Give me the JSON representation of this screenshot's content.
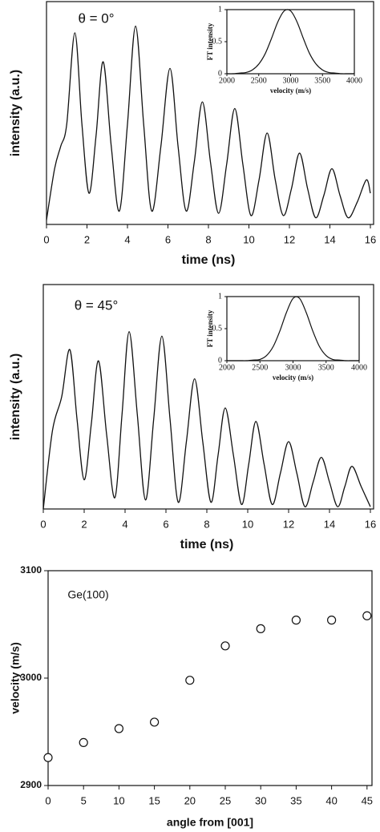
{
  "chart_data": [
    {
      "type": "line",
      "annotation": "θ = 0°",
      "xlabel": "time (ns)",
      "ylabel": "intensity (a.u.)",
      "x": [
        0,
        0.4,
        0.7,
        1.0,
        1.4,
        1.75,
        2.1,
        2.45,
        2.8,
        3.2,
        3.6,
        4.0,
        4.4,
        4.8,
        5.2,
        5.65,
        6.1,
        6.5,
        6.9,
        7.3,
        7.7,
        8.1,
        8.5,
        8.9,
        9.3,
        9.7,
        10.1,
        10.5,
        10.9,
        11.3,
        11.7,
        12.1,
        12.5,
        12.9,
        13.3,
        13.7,
        14.1,
        14.5,
        14.9,
        15.35,
        15.8,
        16
      ],
      "series": [
        {
          "color": "#111111",
          "values": [
            0.02,
            0.25,
            0.35,
            0.45,
            0.86,
            0.45,
            0.14,
            0.4,
            0.73,
            0.35,
            0.06,
            0.45,
            0.89,
            0.45,
            0.06,
            0.35,
            0.7,
            0.35,
            0.06,
            0.28,
            0.55,
            0.28,
            0.05,
            0.27,
            0.52,
            0.27,
            0.04,
            0.2,
            0.41,
            0.2,
            0.04,
            0.16,
            0.32,
            0.16,
            0.03,
            0.13,
            0.25,
            0.13,
            0.03,
            0.1,
            0.2,
            0.14
          ]
        }
      ],
      "xlim": [
        0,
        16
      ],
      "ylim": [
        0,
        1
      ],
      "xticks": [
        0,
        2,
        4,
        6,
        8,
        10,
        12,
        14,
        16
      ]
    },
    {
      "type": "line",
      "xlabel": "velocity (m/s)",
      "ylabel": "FT intensity",
      "x": [
        2000,
        2100,
        2200,
        2300,
        2400,
        2500,
        2600,
        2700,
        2800,
        2900,
        3000,
        3100,
        3200,
        3300,
        3400,
        3500,
        3600,
        3700,
        3800,
        3900,
        4000
      ],
      "series": [
        {
          "color": "#111111",
          "values": [
            0,
            0,
            0.01,
            0.02,
            0.06,
            0.15,
            0.31,
            0.55,
            0.81,
            0.98,
            0.98,
            0.81,
            0.55,
            0.31,
            0.15,
            0.06,
            0.02,
            0.01,
            0,
            0,
            0
          ]
        }
      ],
      "xlim": [
        2000,
        4000
      ],
      "ylim": [
        0,
        1
      ],
      "xticks": [
        2000,
        2500,
        3000,
        3500,
        4000
      ],
      "yticks": [
        0,
        0.5,
        1
      ]
    },
    {
      "type": "line",
      "annotation": "θ = 45°",
      "xlabel": "time (ns)",
      "ylabel": "intensity (a.u.)",
      "x": [
        0,
        0.45,
        0.9,
        1.3,
        1.65,
        2.0,
        2.35,
        2.7,
        3.1,
        3.5,
        3.85,
        4.2,
        4.6,
        5.0,
        5.4,
        5.8,
        6.2,
        6.6,
        7.0,
        7.4,
        7.8,
        8.2,
        8.55,
        8.9,
        9.3,
        9.7,
        10.05,
        10.4,
        10.8,
        11.2,
        11.6,
        12.0,
        12.4,
        12.8,
        13.2,
        13.6,
        14.0,
        14.4,
        14.75,
        15.1,
        15.55,
        16
      ],
      "series": [
        {
          "color": "#111111",
          "values": [
            0,
            0.35,
            0.5,
            0.71,
            0.4,
            0.13,
            0.38,
            0.66,
            0.33,
            0.05,
            0.42,
            0.79,
            0.42,
            0.04,
            0.4,
            0.77,
            0.4,
            0.03,
            0.3,
            0.58,
            0.3,
            0.03,
            0.24,
            0.45,
            0.24,
            0.02,
            0.2,
            0.39,
            0.2,
            0.02,
            0.16,
            0.3,
            0.16,
            0.01,
            0.12,
            0.23,
            0.12,
            0.01,
            0.1,
            0.19,
            0.1,
            0.01
          ]
        }
      ],
      "xlim": [
        0,
        16
      ],
      "ylim": [
        0,
        1
      ],
      "xticks": [
        0,
        2,
        4,
        6,
        8,
        10,
        12,
        14,
        16
      ]
    },
    {
      "type": "line",
      "xlabel": "velocity (m/s)",
      "ylabel": "FT intensity",
      "x": [
        2000,
        2100,
        2200,
        2300,
        2400,
        2500,
        2600,
        2700,
        2800,
        2900,
        3000,
        3100,
        3200,
        3300,
        3400,
        3500,
        3600,
        3700,
        3800,
        3900,
        4000
      ],
      "series": [
        {
          "color": "#111111",
          "values": [
            0,
            0,
            0,
            0,
            0.01,
            0.02,
            0.08,
            0.22,
            0.46,
            0.75,
            0.97,
            0.97,
            0.75,
            0.46,
            0.22,
            0.08,
            0.02,
            0.01,
            0,
            0,
            0
          ]
        }
      ],
      "xlim": [
        2000,
        4000
      ],
      "ylim": [
        0,
        1
      ],
      "xticks": [
        2000,
        2500,
        3000,
        3500,
        4000
      ],
      "yticks": [
        0,
        0.5,
        1
      ]
    },
    {
      "type": "scatter",
      "annotation": "Ge(100)",
      "xlabel": "angle from [001]",
      "ylabel": "velocity (m/s)",
      "x": [
        0,
        5,
        10,
        15,
        20,
        25,
        30,
        35,
        40,
        45
      ],
      "series": [
        {
          "color": "#111111",
          "values": [
            2926,
            2940,
            2953,
            2959,
            2998,
            3030,
            3046,
            3054,
            3054,
            3058
          ]
        }
      ],
      "xlim": [
        0,
        45.7
      ],
      "ylim": [
        2900,
        3100
      ],
      "xticks": [
        0,
        5,
        10,
        15,
        20,
        25,
        30,
        35,
        40,
        45
      ],
      "yticks": [
        2900,
        3000,
        3100
      ]
    }
  ]
}
